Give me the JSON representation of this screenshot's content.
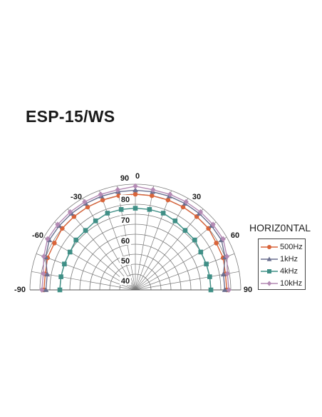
{
  "title": "ESP-15/WS",
  "legend_title": "HORIZ0NTAL",
  "chart_data": {
    "type": "polar",
    "angles": [
      -90,
      -80,
      -70,
      -60,
      -50,
      -40,
      -30,
      -20,
      -10,
      0,
      10,
      20,
      30,
      40,
      50,
      60,
      70,
      80,
      90
    ],
    "angle_tick_labels": [
      "-90",
      "-60",
      "-30",
      "0",
      "30",
      "60",
      "90"
    ],
    "radial_tick_labels": [
      "40",
      "50",
      "60",
      "70",
      "80",
      "90"
    ],
    "rlim": [
      40,
      90
    ],
    "grid": true,
    "legend_position": "right",
    "series": [
      {
        "name": "500Hz",
        "color": "#d9643a",
        "marker": "circle",
        "values": [
          83,
          83,
          84,
          84,
          85,
          85,
          85,
          85,
          85,
          85,
          85,
          85,
          85,
          85,
          85,
          84,
          84,
          83,
          83
        ]
      },
      {
        "name": "1kHz",
        "color": "#6a6f8f",
        "marker": "triangle",
        "values": [
          82,
          82,
          85,
          87,
          87,
          87,
          87,
          87,
          87,
          87,
          87,
          87,
          87,
          87,
          87,
          87,
          85,
          82,
          82
        ]
      },
      {
        "name": "4kHz",
        "color": "#3f8f86",
        "marker": "square",
        "values": [
          75,
          75,
          75,
          75,
          76,
          76,
          77,
          78,
          78,
          78,
          78,
          78,
          77,
          76,
          76,
          75,
          75,
          75,
          75
        ]
      },
      {
        "name": "10kHz",
        "color": "#b48ab4",
        "marker": "diamond",
        "values": [
          84,
          84,
          86,
          88,
          88,
          88,
          88,
          88,
          88,
          89,
          88,
          88,
          88,
          88,
          88,
          88,
          86,
          84,
          84
        ]
      }
    ]
  }
}
